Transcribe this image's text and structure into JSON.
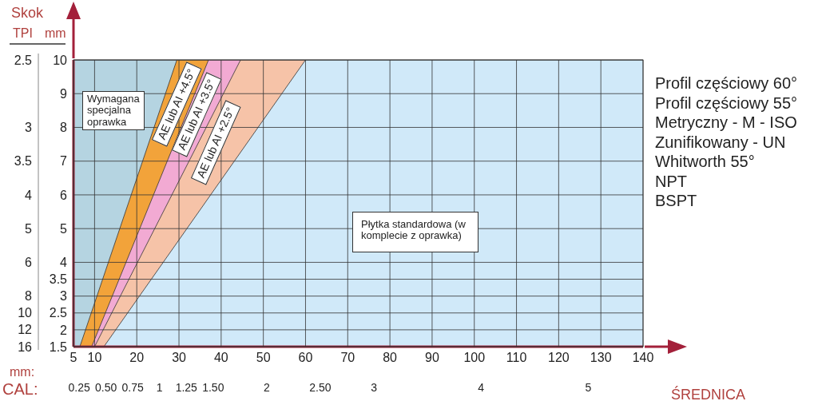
{
  "chart_data": {
    "type": "area",
    "series": [
      {
        "color": "#b5d4e1",
        "x": [
          5,
          29.5
        ],
        "values": [
          10,
          10
        ]
      },
      {
        "color": "#f2a33a",
        "x": [
          6.5,
          29.5,
          37
        ],
        "values": [
          1.5,
          10,
          10
        ]
      },
      {
        "color": "#f2aad3",
        "x": [
          9.3,
          37,
          44.6
        ],
        "values": [
          1.5,
          10,
          10
        ]
      },
      {
        "color": "#f6c3a8",
        "x": [
          10,
          44.6,
          60
        ],
        "values": [
          1.5,
          10,
          10
        ]
      },
      {
        "color": "#d0e9f9",
        "x": [
          12.2,
          60,
          140
        ],
        "values": [
          1.5,
          10,
          10
        ]
      }
    ],
    "xlim": [
      5,
      140
    ],
    "xticks": [
      5,
      10,
      20,
      30,
      40,
      50,
      60,
      70,
      80,
      90,
      100,
      110,
      120,
      130,
      140
    ],
    "x2lim": [
      0.1969,
      5.5118
    ],
    "x2ticks": [
      0.25,
      {
        "value": 0.5,
        "label": "0.50"
      },
      0.75,
      1,
      1.25,
      {
        "value": 1.5,
        "label": "1.50"
      },
      2,
      {
        "value": 2.5,
        "label": "2.50"
      },
      3,
      4,
      5
    ],
    "ylim": [
      1.5,
      10
    ],
    "yticks": [
      1.5,
      2,
      2.5,
      3,
      3.5,
      4,
      5,
      6,
      7,
      8,
      9,
      10
    ],
    "xlabel": "ŚREDNICA",
    "x2label": "CAL:",
    "ylabel": "mm",
    "grid": true,
    "annotations": [
      "Skok",
      "mm:",
      "Wymagana specjalna oprawka",
      "AE lub AI +4.5°",
      "AE lub AI +3.5°",
      "AE lub AI +2.5°",
      "Płytka standardowa (w komplecie z oprawka)",
      "TPI",
      "Profil częściowy 60°",
      "Profil częściowy 55°",
      "Metryczny - M - ISO",
      "Zunifikowany - UN",
      "Whitworth 55°",
      "NPT",
      "BSPT",
      "16",
      "12",
      "10",
      "8",
      "6",
      "5",
      "4",
      "3.5",
      "3",
      "2.5"
    ]
  }
}
